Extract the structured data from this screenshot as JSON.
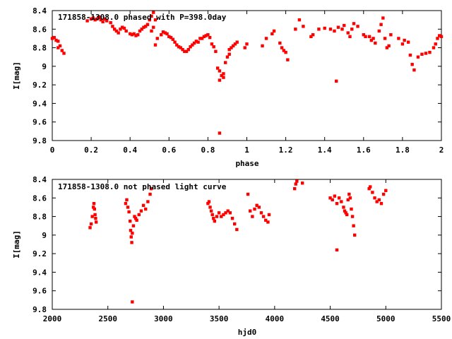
{
  "chart_data": [
    {
      "type": "scatter",
      "title": "171858-1308.0 phased with P=398.0day",
      "xlabel": "phase",
      "ylabel": "I[mag]",
      "xlim": [
        0,
        2
      ],
      "ylim": [
        8.4,
        9.8
      ],
      "y_inverted": true,
      "xticks": [
        "0",
        "0.2",
        "0.4",
        "0.6",
        "0.8",
        "1",
        "1.2",
        "1.4",
        "1.6",
        "1.8",
        "2"
      ],
      "yticks": [
        "8.4",
        "8.6",
        "8.8",
        "9",
        "9.2",
        "9.4",
        "9.6",
        "9.8"
      ],
      "grid": false,
      "marker_color": "#ff0000",
      "points": [
        [
          0.0,
          8.7
        ],
        [
          0.01,
          8.69
        ],
        [
          0.02,
          8.72
        ],
        [
          0.03,
          8.73
        ],
        [
          0.03,
          8.8
        ],
        [
          0.04,
          8.78
        ],
        [
          0.05,
          8.83
        ],
        [
          0.06,
          8.86
        ],
        [
          0.18,
          8.51
        ],
        [
          0.2,
          8.49
        ],
        [
          0.21,
          8.48
        ],
        [
          0.22,
          8.5
        ],
        [
          0.23,
          8.49
        ],
        [
          0.24,
          8.47
        ],
        [
          0.25,
          8.5
        ],
        [
          0.26,
          8.52
        ],
        [
          0.27,
          8.49
        ],
        [
          0.28,
          8.51
        ],
        [
          0.3,
          8.53
        ],
        [
          0.31,
          8.57
        ],
        [
          0.32,
          8.6
        ],
        [
          0.33,
          8.62
        ],
        [
          0.34,
          8.64
        ],
        [
          0.35,
          8.6
        ],
        [
          0.36,
          8.58
        ],
        [
          0.37,
          8.59
        ],
        [
          0.38,
          8.62
        ],
        [
          0.4,
          8.65
        ],
        [
          0.41,
          8.66
        ],
        [
          0.42,
          8.65
        ],
        [
          0.43,
          8.67
        ],
        [
          0.44,
          8.66
        ],
        [
          0.45,
          8.62
        ],
        [
          0.46,
          8.6
        ],
        [
          0.47,
          8.58
        ],
        [
          0.48,
          8.57
        ],
        [
          0.49,
          8.55
        ],
        [
          0.5,
          8.5
        ],
        [
          0.51,
          8.46
        ],
        [
          0.52,
          8.42
        ],
        [
          0.53,
          8.5
        ],
        [
          0.52,
          8.58
        ],
        [
          0.51,
          8.62
        ],
        [
          0.54,
          8.7
        ],
        [
          0.53,
          8.77
        ],
        [
          0.56,
          8.66
        ],
        [
          0.57,
          8.63
        ],
        [
          0.58,
          8.64
        ],
        [
          0.59,
          8.65
        ],
        [
          0.6,
          8.68
        ],
        [
          0.61,
          8.69
        ],
        [
          0.62,
          8.71
        ],
        [
          0.63,
          8.74
        ],
        [
          0.64,
          8.77
        ],
        [
          0.65,
          8.79
        ],
        [
          0.66,
          8.8
        ],
        [
          0.67,
          8.82
        ],
        [
          0.68,
          8.84
        ],
        [
          0.69,
          8.84
        ],
        [
          0.7,
          8.82
        ],
        [
          0.71,
          8.79
        ],
        [
          0.72,
          8.77
        ],
        [
          0.73,
          8.75
        ],
        [
          0.74,
          8.73
        ],
        [
          0.75,
          8.74
        ],
        [
          0.76,
          8.7
        ],
        [
          0.77,
          8.7
        ],
        [
          0.78,
          8.68
        ],
        [
          0.79,
          8.67
        ],
        [
          0.8,
          8.66
        ],
        [
          0.81,
          8.69
        ],
        [
          0.82,
          8.76
        ],
        [
          0.83,
          8.79
        ],
        [
          0.84,
          8.84
        ],
        [
          0.85,
          9.02
        ],
        [
          0.86,
          9.05
        ],
        [
          0.86,
          9.15
        ],
        [
          0.87,
          9.1
        ],
        [
          0.88,
          9.12
        ],
        [
          0.88,
          9.08
        ],
        [
          0.89,
          8.96
        ],
        [
          0.9,
          8.9
        ],
        [
          0.91,
          8.87
        ],
        [
          0.91,
          8.82
        ],
        [
          0.92,
          8.8
        ],
        [
          0.93,
          8.78
        ],
        [
          0.94,
          8.76
        ],
        [
          0.95,
          8.74
        ],
        [
          0.86,
          9.72
        ],
        [
          0.99,
          8.8
        ],
        [
          1.0,
          8.76
        ],
        [
          1.08,
          8.78
        ],
        [
          1.1,
          8.7
        ],
        [
          1.13,
          8.65
        ],
        [
          1.14,
          8.62
        ],
        [
          1.17,
          8.75
        ],
        [
          1.18,
          8.8
        ],
        [
          1.19,
          8.83
        ],
        [
          1.2,
          8.85
        ],
        [
          1.21,
          8.93
        ],
        [
          1.25,
          8.6
        ],
        [
          1.27,
          8.5
        ],
        [
          1.29,
          8.57
        ],
        [
          1.33,
          8.68
        ],
        [
          1.34,
          8.66
        ],
        [
          1.37,
          8.6
        ],
        [
          1.4,
          8.59
        ],
        [
          1.43,
          8.6
        ],
        [
          1.45,
          8.62
        ],
        [
          1.47,
          8.58
        ],
        [
          1.49,
          8.6
        ],
        [
          1.5,
          8.56
        ],
        [
          1.52,
          8.64
        ],
        [
          1.53,
          8.68
        ],
        [
          1.54,
          8.6
        ],
        [
          1.55,
          8.54
        ],
        [
          1.57,
          8.57
        ],
        [
          1.6,
          8.66
        ],
        [
          1.61,
          8.68
        ],
        [
          1.63,
          8.68
        ],
        [
          1.64,
          8.72
        ],
        [
          1.65,
          8.7
        ],
        [
          1.66,
          8.75
        ],
        [
          1.68,
          8.62
        ],
        [
          1.69,
          8.55
        ],
        [
          1.7,
          8.48
        ],
        [
          1.71,
          8.7
        ],
        [
          1.72,
          8.8
        ],
        [
          1.73,
          8.78
        ],
        [
          1.74,
          8.66
        ],
        [
          1.46,
          9.16
        ],
        [
          1.78,
          8.7
        ],
        [
          1.8,
          8.76
        ],
        [
          1.81,
          8.72
        ],
        [
          1.83,
          8.74
        ],
        [
          1.84,
          8.88
        ],
        [
          1.85,
          8.98
        ],
        [
          1.86,
          9.04
        ],
        [
          1.88,
          8.9
        ],
        [
          1.9,
          8.87
        ],
        [
          1.92,
          8.86
        ],
        [
          1.94,
          8.85
        ],
        [
          1.96,
          8.8
        ],
        [
          1.97,
          8.76
        ],
        [
          1.98,
          8.7
        ],
        [
          1.99,
          8.67
        ],
        [
          2.0,
          8.68
        ]
      ]
    },
    {
      "type": "scatter",
      "title": "171858-1308.0 not phased light curve",
      "xlabel": "hjd0",
      "ylabel": "I[mag]",
      "xlim": [
        2000,
        5500
      ],
      "ylim": [
        8.4,
        9.8
      ],
      "y_inverted": true,
      "xticks": [
        "2000",
        "2500",
        "3000",
        "3500",
        "4000",
        "4500",
        "5000",
        "5500"
      ],
      "yticks": [
        "8.4",
        "8.6",
        "8.8",
        "9",
        "9.2",
        "9.4",
        "9.6",
        "9.8"
      ],
      "grid": false,
      "marker_color": "#ff0000",
      "points": [
        [
          2340,
          8.92
        ],
        [
          2350,
          8.88
        ],
        [
          2360,
          8.8
        ],
        [
          2370,
          8.7
        ],
        [
          2375,
          8.66
        ],
        [
          2380,
          8.72
        ],
        [
          2385,
          8.78
        ],
        [
          2390,
          8.82
        ],
        [
          2395,
          8.86
        ],
        [
          2660,
          8.66
        ],
        [
          2670,
          8.62
        ],
        [
          2680,
          8.7
        ],
        [
          2690,
          8.75
        ],
        [
          2700,
          8.85
        ],
        [
          2705,
          8.95
        ],
        [
          2710,
          9.02
        ],
        [
          2715,
          9.08
        ],
        [
          2720,
          8.98
        ],
        [
          2730,
          8.9
        ],
        [
          2740,
          8.8
        ],
        [
          2750,
          8.82
        ],
        [
          2760,
          8.84
        ],
        [
          2780,
          8.78
        ],
        [
          2800,
          8.74
        ],
        [
          2820,
          8.68
        ],
        [
          2840,
          8.72
        ],
        [
          2860,
          8.64
        ],
        [
          2880,
          8.56
        ],
        [
          2890,
          8.5
        ],
        [
          2720,
          9.72
        ],
        [
          3400,
          8.66
        ],
        [
          3410,
          8.64
        ],
        [
          3420,
          8.7
        ],
        [
          3430,
          8.74
        ],
        [
          3440,
          8.78
        ],
        [
          3450,
          8.82
        ],
        [
          3460,
          8.85
        ],
        [
          3480,
          8.8
        ],
        [
          3500,
          8.76
        ],
        [
          3520,
          8.8
        ],
        [
          3540,
          8.78
        ],
        [
          3560,
          8.76
        ],
        [
          3580,
          8.74
        ],
        [
          3600,
          8.76
        ],
        [
          3620,
          8.82
        ],
        [
          3640,
          8.88
        ],
        [
          3660,
          8.94
        ],
        [
          3760,
          8.56
        ],
        [
          3780,
          8.74
        ],
        [
          3800,
          8.8
        ],
        [
          3820,
          8.72
        ],
        [
          3840,
          8.68
        ],
        [
          3860,
          8.7
        ],
        [
          3880,
          8.76
        ],
        [
          3900,
          8.8
        ],
        [
          3920,
          8.84
        ],
        [
          3940,
          8.86
        ],
        [
          3950,
          8.78
        ],
        [
          4180,
          8.5
        ],
        [
          4190,
          8.45
        ],
        [
          4200,
          8.42
        ],
        [
          4250,
          8.44
        ],
        [
          4500,
          8.6
        ],
        [
          4520,
          8.62
        ],
        [
          4540,
          8.58
        ],
        [
          4560,
          8.66
        ],
        [
          4580,
          8.6
        ],
        [
          4600,
          8.64
        ],
        [
          4620,
          8.7
        ],
        [
          4630,
          8.74
        ],
        [
          4640,
          8.76
        ],
        [
          4650,
          8.78
        ],
        [
          4660,
          8.62
        ],
        [
          4670,
          8.56
        ],
        [
          4680,
          8.6
        ],
        [
          4690,
          8.72
        ],
        [
          4700,
          8.8
        ],
        [
          4710,
          8.9
        ],
        [
          4720,
          9.0
        ],
        [
          4560,
          9.16
        ],
        [
          4850,
          8.5
        ],
        [
          4860,
          8.48
        ],
        [
          4880,
          8.54
        ],
        [
          4900,
          8.6
        ],
        [
          4920,
          8.64
        ],
        [
          4940,
          8.62
        ],
        [
          4960,
          8.66
        ],
        [
          4980,
          8.56
        ],
        [
          5000,
          8.52
        ]
      ]
    }
  ]
}
